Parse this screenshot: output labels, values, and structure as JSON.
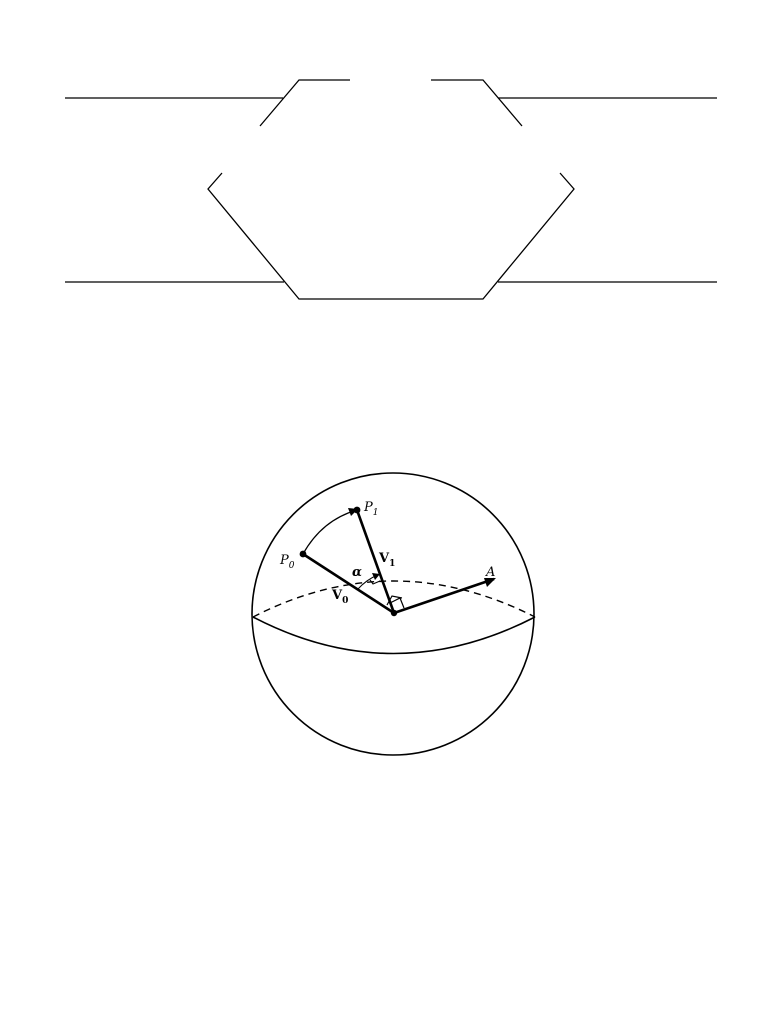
{
  "figure": {
    "labels": {
      "p0": "P",
      "p0_sub": "0",
      "p1": "P",
      "p1_sub": "1",
      "v0": "V",
      "v0_sub": "0",
      "v1": "V",
      "v1_sub": "1",
      "alpha": "α",
      "axis": "A"
    }
  }
}
